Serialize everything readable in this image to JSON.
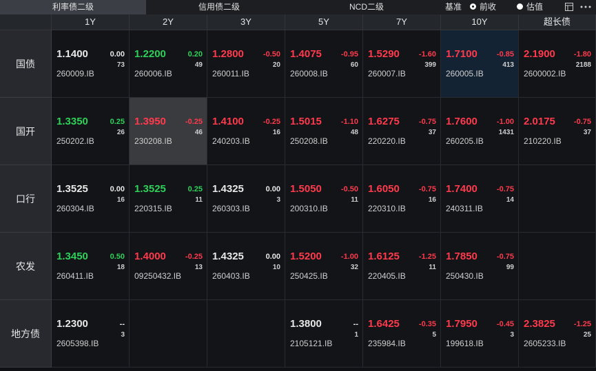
{
  "tabs": [
    {
      "label": "利率债二级",
      "active": true
    },
    {
      "label": "信用债二级",
      "active": false
    },
    {
      "label": "NCD二级",
      "active": false
    }
  ],
  "benchmark": {
    "label": "基准",
    "options": [
      {
        "label": "前收",
        "checked": true
      },
      {
        "label": "估值",
        "checked": false
      }
    ]
  },
  "table": {
    "columns": [
      "1Y",
      "2Y",
      "3Y",
      "5Y",
      "7Y",
      "10Y",
      "超长债"
    ],
    "rows": [
      {
        "label": "国债",
        "cells": [
          {
            "price": "1.1400",
            "change": "0.00",
            "volume": "73",
            "code": "260009.IB",
            "color": "#e8e8e8"
          },
          {
            "price": "1.2200",
            "change": "0.20",
            "volume": "49",
            "code": "260006.IB",
            "color": "#2ed159"
          },
          {
            "price": "1.2800",
            "change": "-0.50",
            "volume": "20",
            "code": "260011.IB",
            "color": "#ff3a4c"
          },
          {
            "price": "1.4075",
            "change": "-0.95",
            "volume": "60",
            "code": "260008.IB",
            "color": "#ff3a4c"
          },
          {
            "price": "1.5290",
            "change": "-1.60",
            "volume": "399",
            "code": "260007.IB",
            "color": "#ff3a4c"
          },
          {
            "price": "1.7100",
            "change": "-0.85",
            "volume": "413",
            "code": "260005.IB",
            "color": "#ff3a4c",
            "background": "#142333"
          },
          {
            "price": "2.1900",
            "change": "-1.80",
            "volume": "2188",
            "code": "2600002.IB",
            "color": "#ff3a4c"
          }
        ]
      },
      {
        "label": "国开",
        "cells": [
          {
            "price": "1.3350",
            "change": "0.25",
            "volume": "26",
            "code": "250202.IB",
            "color": "#2ed159"
          },
          {
            "price": "1.3950",
            "change": "-0.25",
            "volume": "46",
            "code": "230208.IB",
            "color": "#ff3a4c",
            "background": "#3a3b3e"
          },
          {
            "price": "1.4100",
            "change": "-0.25",
            "volume": "16",
            "code": "240203.IB",
            "color": "#ff3a4c"
          },
          {
            "price": "1.5015",
            "change": "-1.10",
            "volume": "48",
            "code": "250208.IB",
            "color": "#ff3a4c"
          },
          {
            "price": "1.6275",
            "change": "-0.75",
            "volume": "37",
            "code": "220220.IB",
            "color": "#ff3a4c"
          },
          {
            "price": "1.7600",
            "change": "-1.00",
            "volume": "1431",
            "code": "260205.IB",
            "color": "#ff3a4c"
          },
          {
            "price": "2.0175",
            "change": "-0.75",
            "volume": "37",
            "code": "210220.IB",
            "color": "#ff3a4c"
          }
        ]
      },
      {
        "label": "口行",
        "cells": [
          {
            "price": "1.3525",
            "change": "0.00",
            "volume": "16",
            "code": "260304.IB",
            "color": "#e8e8e8"
          },
          {
            "price": "1.3525",
            "change": "0.25",
            "volume": "11",
            "code": "220315.IB",
            "color": "#2ed159"
          },
          {
            "price": "1.4325",
            "change": "0.00",
            "volume": "3",
            "code": "260303.IB",
            "color": "#e8e8e8"
          },
          {
            "price": "1.5050",
            "change": "-0.50",
            "volume": "11",
            "code": "200310.IB",
            "color": "#ff3a4c"
          },
          {
            "price": "1.6050",
            "change": "-0.75",
            "volume": "16",
            "code": "220310.IB",
            "color": "#ff3a4c"
          },
          {
            "price": "1.7400",
            "change": "-0.75",
            "volume": "14",
            "code": "240311.IB",
            "color": "#ff3a4c"
          },
          null
        ]
      },
      {
        "label": "农发",
        "cells": [
          {
            "price": "1.3450",
            "change": "0.50",
            "volume": "18",
            "code": "260411.IB",
            "color": "#2ed159"
          },
          {
            "price": "1.4000",
            "change": "-0.25",
            "volume": "13",
            "code": "09250432.IB",
            "color": "#ff3a4c"
          },
          {
            "price": "1.4325",
            "change": "0.00",
            "volume": "10",
            "code": "260403.IB",
            "color": "#e8e8e8"
          },
          {
            "price": "1.5200",
            "change": "-1.00",
            "volume": "32",
            "code": "250425.IB",
            "color": "#ff3a4c"
          },
          {
            "price": "1.6125",
            "change": "-1.25",
            "volume": "11",
            "code": "220405.IB",
            "color": "#ff3a4c"
          },
          {
            "price": "1.7850",
            "change": "-0.75",
            "volume": "99",
            "code": "250430.IB",
            "color": "#ff3a4c"
          },
          null
        ]
      },
      {
        "label": "地方债",
        "cells": [
          {
            "price": "1.2300",
            "change": "--",
            "volume": "3",
            "code": "2605398.IB",
            "color": "#e8e8e8"
          },
          null,
          null,
          {
            "price": "1.3800",
            "change": "--",
            "volume": "1",
            "code": "2105121.IB",
            "color": "#e8e8e8"
          },
          {
            "price": "1.6425",
            "change": "-0.35",
            "volume": "5",
            "code": "235984.IB",
            "color": "#ff3a4c"
          },
          {
            "price": "1.7950",
            "change": "-0.45",
            "volume": "3",
            "code": "199618.IB",
            "color": "#ff3a4c"
          },
          {
            "price": "2.3825",
            "change": "-1.25",
            "volume": "25",
            "code": "2605233.IB",
            "color": "#ff3a4c"
          }
        ]
      }
    ]
  }
}
